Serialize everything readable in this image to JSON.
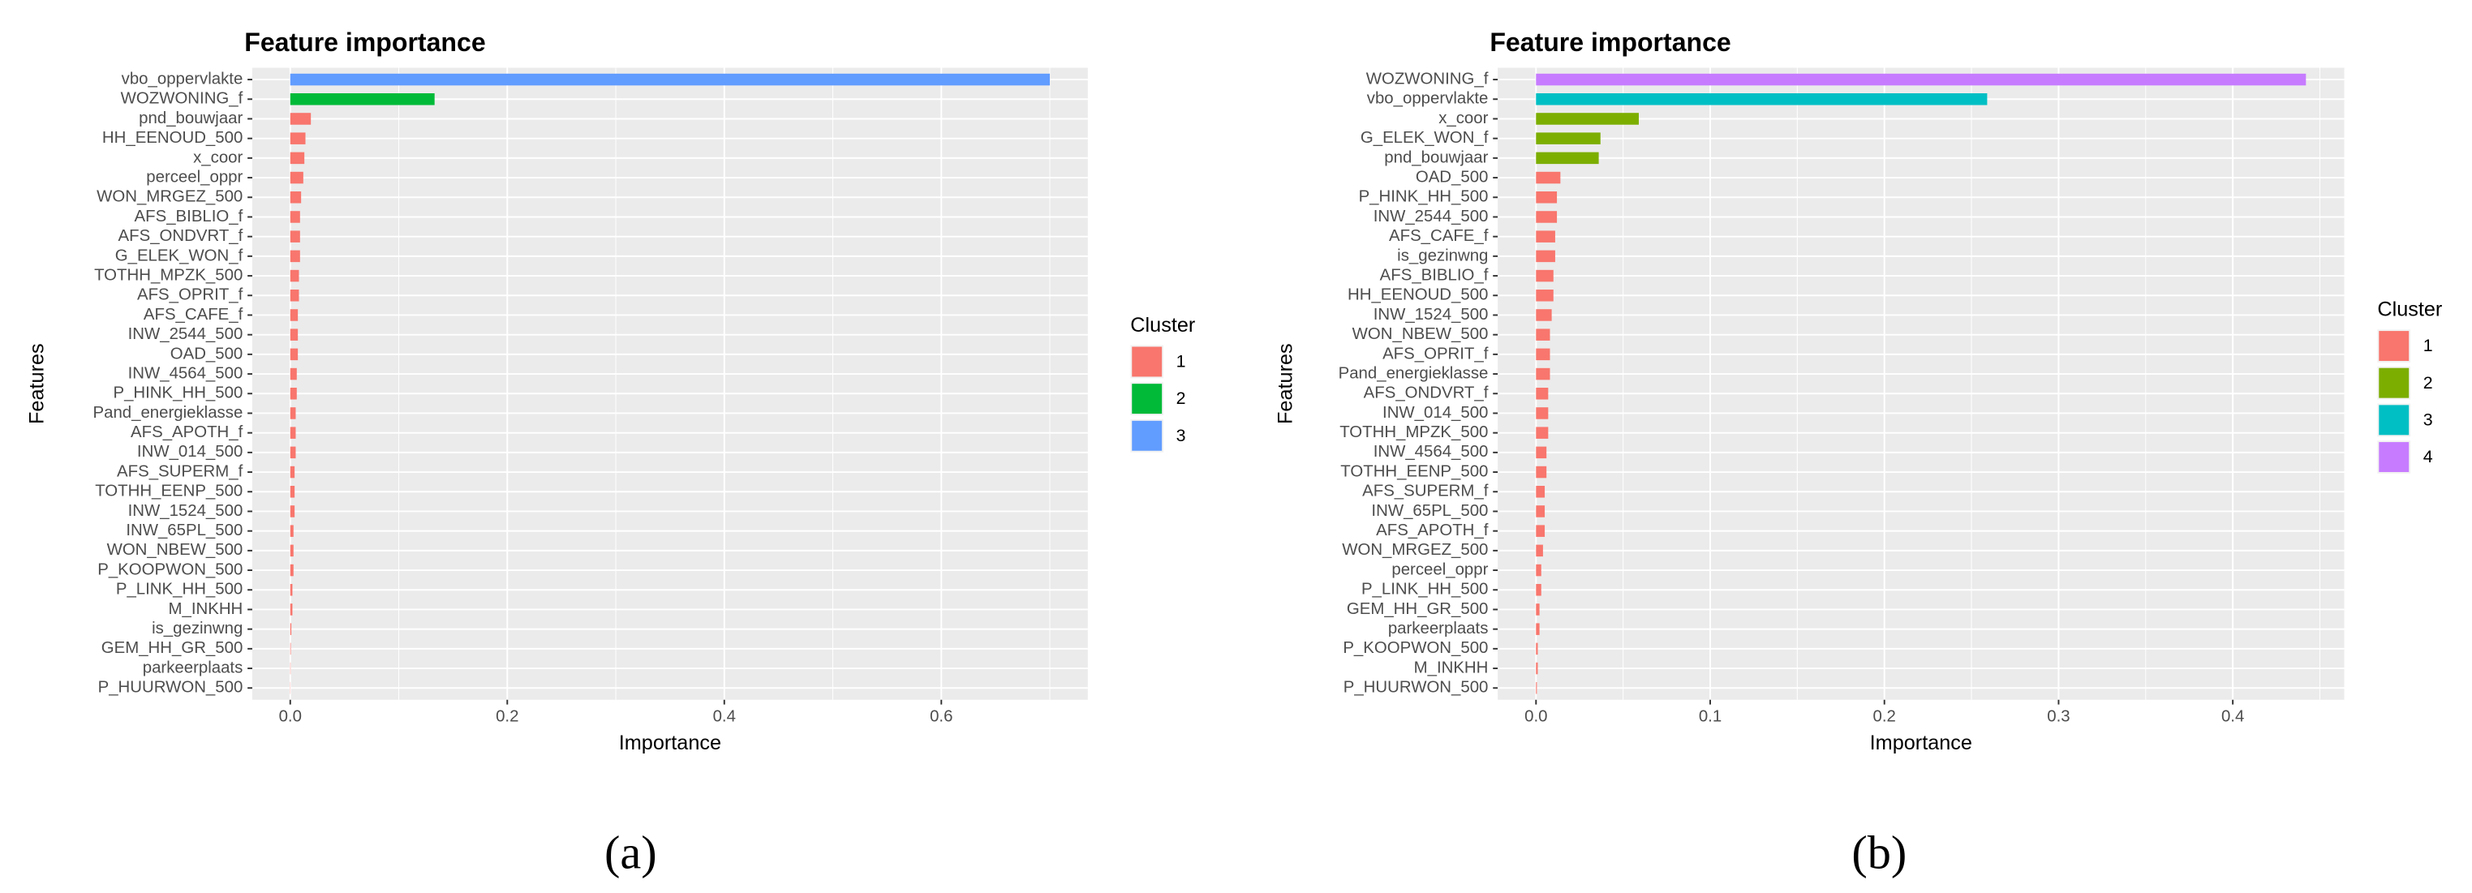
{
  "chart_data": [
    {
      "type": "bar",
      "orientation": "horizontal",
      "title": "Feature importance",
      "caption": "(a)",
      "x_label": "Importance",
      "y_label": "Features",
      "legend_title": "Cluster",
      "legend": "right",
      "grid": true,
      "categories": [
        "vbo_oppervlakte",
        "WOZWONING_f",
        "pnd_bouwjaar",
        "HH_EENOUD_500",
        "x_coor",
        "perceel_oppr",
        "WON_MRGEZ_500",
        "AFS_BIBLIO_f",
        "AFS_ONDVRT_f",
        "G_ELEK_WON_f",
        "TOTHH_MPZK_500",
        "AFS_OPRIT_f",
        "AFS_CAFE_f",
        "INW_2544_500",
        "OAD_500",
        "INW_4564_500",
        "P_HINK_HH_500",
        "Pand_energieklasse",
        "AFS_APOTH_f",
        "INW_014_500",
        "AFS_SUPERM_f",
        "TOTHH_EENP_500",
        "INW_1524_500",
        "INW_65PL_500",
        "WON_NBEW_500",
        "P_KOOPWON_500",
        "P_LINK_HH_500",
        "M_INKHH",
        "is_gezinwng",
        "GEM_HH_GR_500",
        "parkeerplaats",
        "P_HUURWON_500"
      ],
      "series": [
        {
          "name": "1",
          "color": "#F8766D",
          "values": [
            null,
            null,
            0.019,
            0.014,
            0.013,
            0.012,
            0.01,
            0.009,
            0.009,
            0.009,
            0.008,
            0.008,
            0.007,
            0.007,
            0.007,
            0.006,
            0.006,
            0.005,
            0.005,
            0.005,
            0.004,
            0.004,
            0.004,
            0.003,
            0.003,
            0.003,
            0.002,
            0.002,
            0.001,
            0.0005,
            0.0003,
            0.0002
          ]
        },
        {
          "name": "2",
          "color": "#00BA38",
          "values": [
            null,
            0.133,
            null,
            null,
            null,
            null,
            null,
            null,
            null,
            null,
            null,
            null,
            null,
            null,
            null,
            null,
            null,
            null,
            null,
            null,
            null,
            null,
            null,
            null,
            null,
            null,
            null,
            null,
            null,
            null,
            null,
            null
          ]
        },
        {
          "name": "3",
          "color": "#619CFF",
          "values": [
            0.7,
            null,
            null,
            null,
            null,
            null,
            null,
            null,
            null,
            null,
            null,
            null,
            null,
            null,
            null,
            null,
            null,
            null,
            null,
            null,
            null,
            null,
            null,
            null,
            null,
            null,
            null,
            null,
            null,
            null,
            null,
            null
          ]
        }
      ],
      "xlim": [
        -0.035,
        0.735
      ],
      "xticks": [
        {
          "value": 0,
          "label": "0.0"
        },
        0.2,
        0.4,
        0.6
      ]
    },
    {
      "type": "bar",
      "orientation": "horizontal",
      "title": "Feature importance",
      "caption": "(b)",
      "x_label": "Importance",
      "y_label": "Features",
      "legend_title": "Cluster",
      "legend": "right",
      "grid": true,
      "categories": [
        "WOZWONING_f",
        "vbo_oppervlakte",
        "x_coor",
        "G_ELEK_WON_f",
        "pnd_bouwjaar",
        "OAD_500",
        "P_HINK_HH_500",
        "INW_2544_500",
        "AFS_CAFE_f",
        "is_gezinwng",
        "AFS_BIBLIO_f",
        "HH_EENOUD_500",
        "INW_1524_500",
        "WON_NBEW_500",
        "AFS_OPRIT_f",
        "Pand_energieklasse",
        "AFS_ONDVRT_f",
        "INW_014_500",
        "TOTHH_MPZK_500",
        "INW_4564_500",
        "TOTHH_EENP_500",
        "AFS_SUPERM_f",
        "INW_65PL_500",
        "AFS_APOTH_f",
        "WON_MRGEZ_500",
        "perceel_oppr",
        "P_LINK_HH_500",
        "GEM_HH_GR_500",
        "parkeerplaats",
        "P_KOOPWON_500",
        "M_INKHH",
        "P_HUURWON_500"
      ],
      "series": [
        {
          "name": "1",
          "color": "#F8766D",
          "values": [
            null,
            null,
            null,
            null,
            null,
            0.014,
            0.012,
            0.012,
            0.011,
            0.011,
            0.01,
            0.01,
            0.009,
            0.008,
            0.008,
            0.008,
            0.007,
            0.007,
            0.007,
            0.006,
            0.006,
            0.005,
            0.005,
            0.005,
            0.004,
            0.003,
            0.003,
            0.002,
            0.002,
            0.001,
            0.001,
            0.0005
          ]
        },
        {
          "name": "2",
          "color": "#7CAE00",
          "values": [
            null,
            null,
            0.059,
            0.037,
            0.036,
            null,
            null,
            null,
            null,
            null,
            null,
            null,
            null,
            null,
            null,
            null,
            null,
            null,
            null,
            null,
            null,
            null,
            null,
            null,
            null,
            null,
            null,
            null,
            null,
            null,
            null,
            null
          ]
        },
        {
          "name": "3",
          "color": "#00BFC4",
          "values": [
            null,
            0.259,
            null,
            null,
            null,
            null,
            null,
            null,
            null,
            null,
            null,
            null,
            null,
            null,
            null,
            null,
            null,
            null,
            null,
            null,
            null,
            null,
            null,
            null,
            null,
            null,
            null,
            null,
            null,
            null,
            null,
            null
          ]
        },
        {
          "name": "4",
          "color": "#C77CFF",
          "values": [
            0.442,
            null,
            null,
            null,
            null,
            null,
            null,
            null,
            null,
            null,
            null,
            null,
            null,
            null,
            null,
            null,
            null,
            null,
            null,
            null,
            null,
            null,
            null,
            null,
            null,
            null,
            null,
            null,
            null,
            null,
            null,
            null
          ]
        }
      ],
      "xlim": [
        -0.022,
        0.464
      ],
      "xticks": [
        {
          "value": 0,
          "label": "0.0"
        },
        0.1,
        0.2,
        0.3,
        0.4
      ]
    }
  ]
}
